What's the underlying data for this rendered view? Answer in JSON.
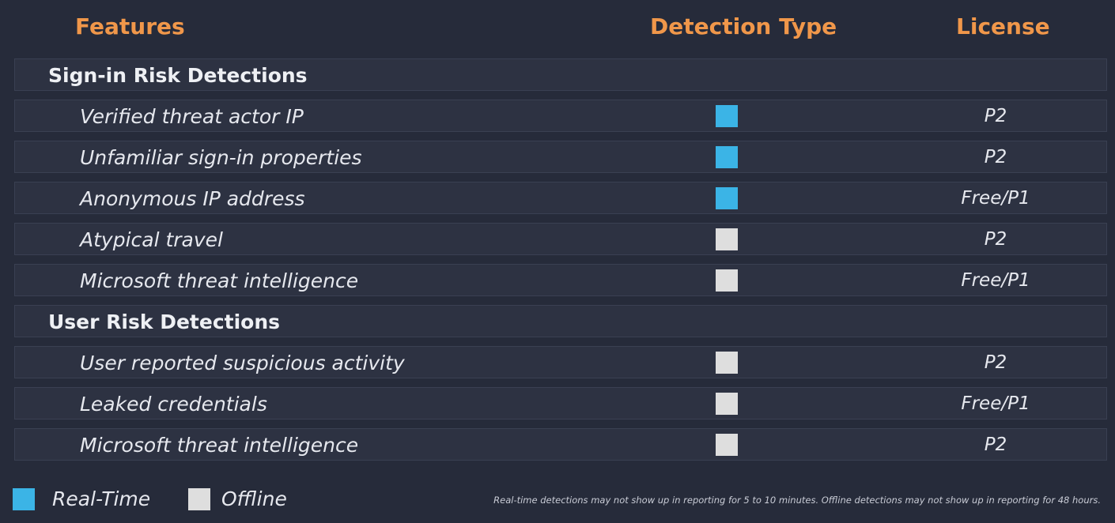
{
  "colors": {
    "realtime": "#3bb4e6",
    "offline": "#dedede",
    "header": "#f0974a"
  },
  "headers": {
    "features": "Features",
    "detection_type": "Detection Type",
    "license": "License"
  },
  "sections": [
    {
      "title": "Sign-in Risk Detections",
      "items": [
        {
          "label": "Verified threat actor IP",
          "detection": "realtime",
          "license": "P2"
        },
        {
          "label": "Unfamiliar sign-in properties",
          "detection": "realtime",
          "license": "P2"
        },
        {
          "label": "Anonymous IP address",
          "detection": "realtime",
          "license": "Free/P1"
        },
        {
          "label": "Atypical travel",
          "detection": "offline",
          "license": "P2"
        },
        {
          "label": "Microsoft threat intelligence",
          "detection": "offline",
          "license": "Free/P1"
        }
      ]
    },
    {
      "title": "User Risk Detections",
      "items": [
        {
          "label": "User reported suspicious activity",
          "detection": "offline",
          "license": "P2"
        },
        {
          "label": "Leaked credentials",
          "detection": "offline",
          "license": "Free/P1"
        },
        {
          "label": "Microsoft threat intelligence",
          "detection": "offline",
          "license": "P2"
        }
      ]
    }
  ],
  "legend": {
    "realtime_label": "Real-Time",
    "offline_label": "Offline"
  },
  "footnote": "Real-time detections may not show up in reporting for 5 to 10 minutes. Offline detections may not show up in reporting for 48 hours."
}
